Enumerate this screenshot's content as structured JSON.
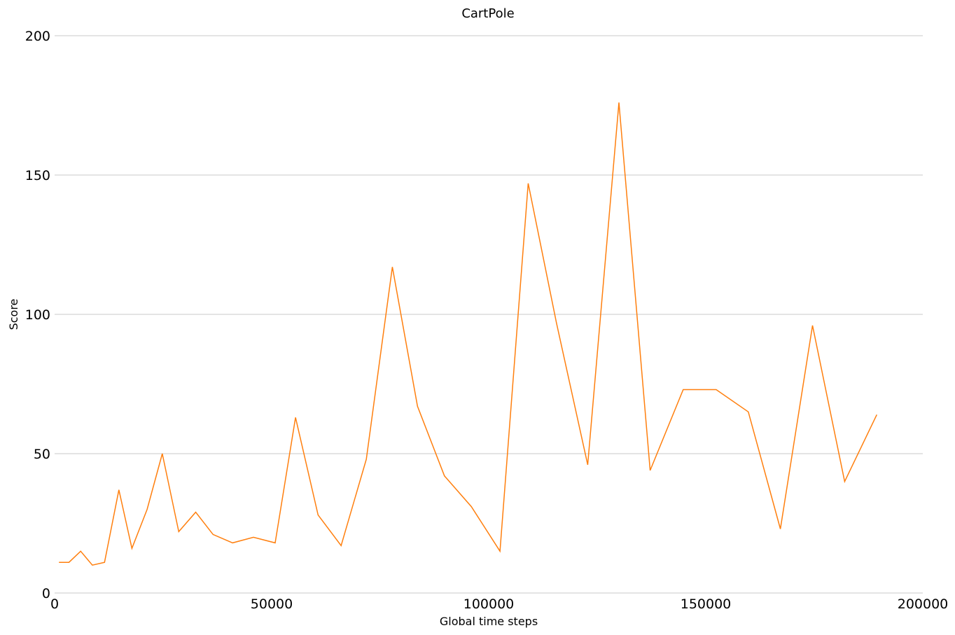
{
  "chart_data": {
    "type": "line",
    "title": "CartPole",
    "xlabel": "Global time steps",
    "ylabel": "Score",
    "xlim": [
      0,
      200000
    ],
    "ylim": [
      0,
      200
    ],
    "x_ticks": [
      0,
      50000,
      100000,
      150000,
      200000
    ],
    "y_ticks": [
      0,
      50,
      100,
      150,
      200
    ],
    "grid": "horizontal",
    "legend": "none",
    "series": [
      {
        "color": "#ff7f0e",
        "x": [
          1000,
          3300,
          6000,
          8700,
          11500,
          14800,
          17800,
          21300,
          24800,
          28600,
          32500,
          36500,
          41000,
          45800,
          50800,
          55500,
          60700,
          66000,
          71800,
          77800,
          83600,
          89800,
          96000,
          102600,
          109100,
          115600,
          122800,
          130000,
          137200,
          144800,
          152400,
          159800,
          167200,
          174600,
          182000,
          189400
        ],
        "values": [
          11,
          11,
          15,
          10,
          11,
          37,
          16,
          30,
          50,
          22,
          29,
          21,
          18,
          20,
          18,
          63,
          28,
          17,
          48,
          117,
          67,
          42,
          31,
          15,
          147,
          97,
          46,
          176,
          44,
          73,
          73,
          65,
          23,
          96,
          40,
          64
        ]
      }
    ]
  }
}
